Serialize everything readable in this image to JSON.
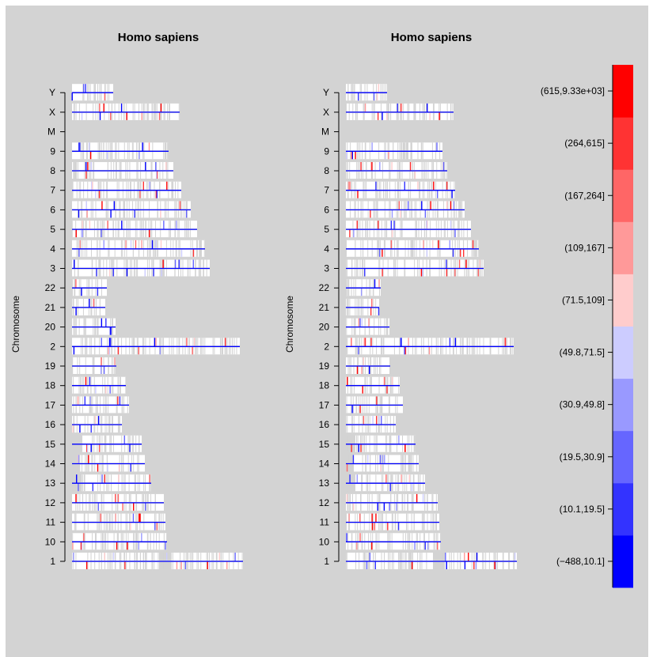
{
  "chart_data": [
    {
      "type": "heatmap",
      "title": "Homo sapiens",
      "ylabel": "Chromosome",
      "chromosomes": [
        "1",
        "10",
        "11",
        "12",
        "13",
        "14",
        "15",
        "16",
        "17",
        "18",
        "19",
        "2",
        "20",
        "21",
        "22",
        "3",
        "4",
        "5",
        "6",
        "7",
        "8",
        "9",
        "M",
        "X",
        "Y"
      ]
    },
    {
      "type": "heatmap",
      "title": "Homo sapiens",
      "ylabel": "Chromosome",
      "chromosomes": [
        "1",
        "10",
        "11",
        "12",
        "13",
        "14",
        "15",
        "16",
        "17",
        "18",
        "19",
        "2",
        "20",
        "21",
        "22",
        "3",
        "4",
        "5",
        "6",
        "7",
        "8",
        "9",
        "M",
        "X",
        "Y"
      ]
    }
  ],
  "legend": {
    "bins": [
      {
        "label": "(−488,10.1]",
        "color": "#0000FF"
      },
      {
        "label": "(10.1,19.5]",
        "color": "#3333FF"
      },
      {
        "label": "(19.5,30.9]",
        "color": "#6666FF"
      },
      {
        "label": "(30.9,49.8]",
        "color": "#9999FF"
      },
      {
        "label": "(49.8,71.5]",
        "color": "#CCCCFF"
      },
      {
        "label": "(71.5,109]",
        "color": "#FFCCCC"
      },
      {
        "label": "(109,167]",
        "color": "#FF9999"
      },
      {
        "label": "(167,264]",
        "color": "#FF6666"
      },
      {
        "label": "(264,615]",
        "color": "#FF3333"
      },
      {
        "label": "(615,9.33e+03]",
        "color": "#FF0000"
      }
    ]
  },
  "colors": {
    "background": "#D3D3D3",
    "track": "#FFFFFF",
    "chromosome_line": "#0000FF"
  }
}
